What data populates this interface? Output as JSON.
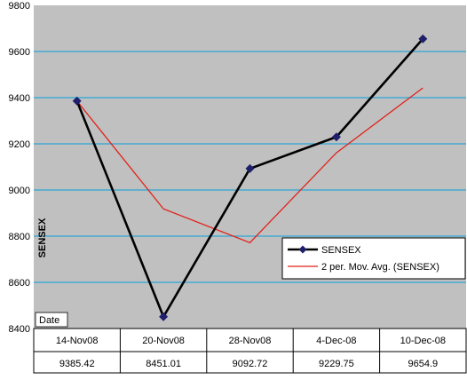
{
  "chart_data": {
    "type": "line",
    "ylabel": "SENSEX",
    "xlabel": "Date",
    "ylim": [
      8400,
      9800
    ],
    "yticks": [
      8400,
      8600,
      8800,
      9000,
      9200,
      9400,
      9600,
      9800
    ],
    "grid": true,
    "legend_position": "lower-right",
    "categories": [
      "14-Nov08",
      "20-Nov08",
      "28-Nov08",
      "4-Dec-08",
      "10-Dec-08"
    ],
    "series": [
      {
        "name": "SENSEX",
        "values": [
          9385.42,
          8451.01,
          9092.72,
          9229.75,
          9654.9
        ],
        "color": "#000000",
        "marker_color": "#1f1f6b"
      },
      {
        "name": "2 per. Mov. Avg. (SENSEX)",
        "values": [
          9385.42,
          8918.22,
          8771.87,
          9161.24,
          9442.33
        ],
        "color": "#e0221a"
      }
    ],
    "table": {
      "headers": [
        "14-Nov08",
        "20-Nov08",
        "28-Nov08",
        "4-Dec-08",
        "10-Dec-08"
      ],
      "values": [
        "9385.42",
        "8451.01",
        "9092.72",
        "9229.75",
        "9654.9"
      ]
    },
    "colors": {
      "plot_bg": "#c0c0c0",
      "gridline": "#2aa6d6"
    }
  }
}
